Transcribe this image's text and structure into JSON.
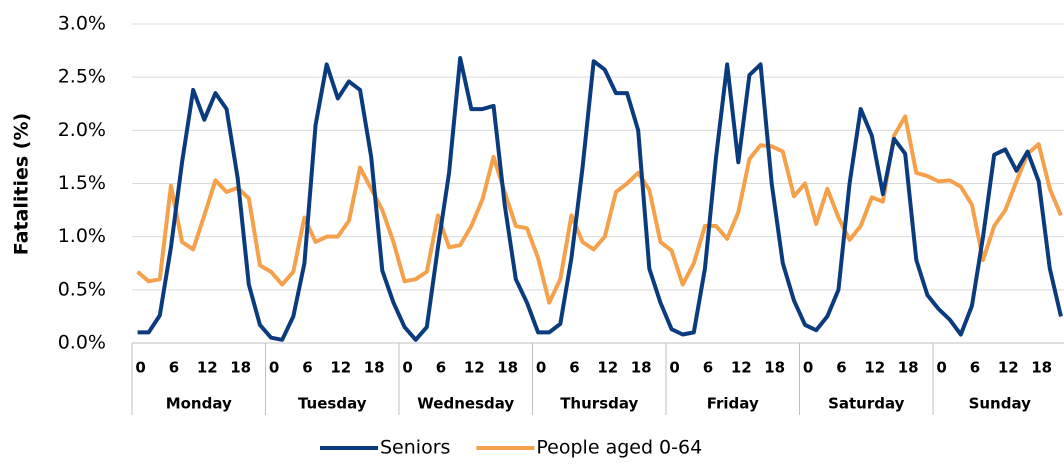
{
  "chart_data": {
    "type": "line",
    "y_label": "Fatalities (%)",
    "categories": [
      "0",
      null,
      null,
      "6",
      null,
      null,
      "12",
      null,
      null,
      "18",
      null,
      null,
      "0",
      null,
      null,
      "6",
      null,
      null,
      "12",
      null,
      null,
      "18",
      null,
      null,
      "0",
      null,
      null,
      "6",
      null,
      null,
      "12",
      null,
      null,
      "18",
      null,
      null,
      "0",
      null,
      null,
      "6",
      null,
      null,
      "12",
      null,
      null,
      "18",
      null,
      null,
      "0",
      null,
      null,
      "6",
      null,
      null,
      "12",
      null,
      null,
      "18",
      null,
      null,
      "0",
      null,
      null,
      "6",
      null,
      null,
      "12",
      null,
      null,
      "18",
      null,
      null,
      "0",
      null,
      null,
      "6",
      null,
      null,
      "12",
      null,
      null,
      "18",
      null,
      null
    ],
    "groups": [
      "Monday",
      "Tuesday",
      "Wednesday",
      "Thursday",
      "Friday",
      "Saturday",
      "Sunday"
    ],
    "series": [
      {
        "name": "Seniors",
        "color": "#0b3b7f",
        "values": [
          0.1,
          0.1,
          0.26,
          0.9,
          1.7,
          2.38,
          2.1,
          2.35,
          2.2,
          1.55,
          0.55,
          0.17,
          0.05,
          0.03,
          0.25,
          0.75,
          2.05,
          2.62,
          2.3,
          2.46,
          2.38,
          1.75,
          0.68,
          0.38,
          0.15,
          0.03,
          0.15,
          0.9,
          1.6,
          2.68,
          2.2,
          2.2,
          2.23,
          1.3,
          0.6,
          0.38,
          0.1,
          0.1,
          0.18,
          0.8,
          1.65,
          2.65,
          2.57,
          2.35,
          2.35,
          2.0,
          0.7,
          0.38,
          0.13,
          0.08,
          0.1,
          0.7,
          1.75,
          2.62,
          1.7,
          2.52,
          2.62,
          1.5,
          0.75,
          0.4,
          0.17,
          0.12,
          0.25,
          0.5,
          1.5,
          2.2,
          1.95,
          1.4,
          1.92,
          1.78,
          0.78,
          0.45,
          0.32,
          0.22,
          0.08,
          0.35,
          1.0,
          1.77,
          1.82,
          1.62,
          1.8,
          1.52,
          0.7,
          0.25
        ]
      },
      {
        "name": "People aged 0-64",
        "color": "#f5a04a",
        "values": [
          0.67,
          0.58,
          0.6,
          1.48,
          0.95,
          0.88,
          1.2,
          1.53,
          1.42,
          1.46,
          1.36,
          0.73,
          0.67,
          0.55,
          0.67,
          1.18,
          0.95,
          1.0,
          1.0,
          1.15,
          1.65,
          1.45,
          1.25,
          0.95,
          0.58,
          0.6,
          0.67,
          1.2,
          0.9,
          0.92,
          1.1,
          1.35,
          1.75,
          1.42,
          1.1,
          1.08,
          0.8,
          0.38,
          0.6,
          1.2,
          0.95,
          0.88,
          1.0,
          1.42,
          1.5,
          1.6,
          1.44,
          0.95,
          0.87,
          0.55,
          0.75,
          1.1,
          1.1,
          0.98,
          1.23,
          1.73,
          1.86,
          1.85,
          1.8,
          1.38,
          1.5,
          1.12,
          1.45,
          1.18,
          0.97,
          1.1,
          1.37,
          1.33,
          1.95,
          2.13,
          1.6,
          1.57,
          1.52,
          1.53,
          1.47,
          1.3,
          0.78,
          1.1,
          1.25,
          1.52,
          1.78,
          1.87,
          1.45,
          1.2
        ]
      }
    ],
    "ylim": [
      0,
      3
    ],
    "yticks": [
      {
        "value": 0,
        "label": "0.0%"
      },
      {
        "value": 0.5,
        "label": "0.5%"
      },
      {
        "value": 1,
        "label": "1.0%"
      },
      {
        "value": 1.5,
        "label": "1.5%"
      },
      {
        "value": 2,
        "label": "2.0%"
      },
      {
        "value": 2.5,
        "label": "2.5%"
      },
      {
        "value": 3,
        "label": "3.0%"
      }
    ],
    "grid": true,
    "legend": "bottom"
  }
}
